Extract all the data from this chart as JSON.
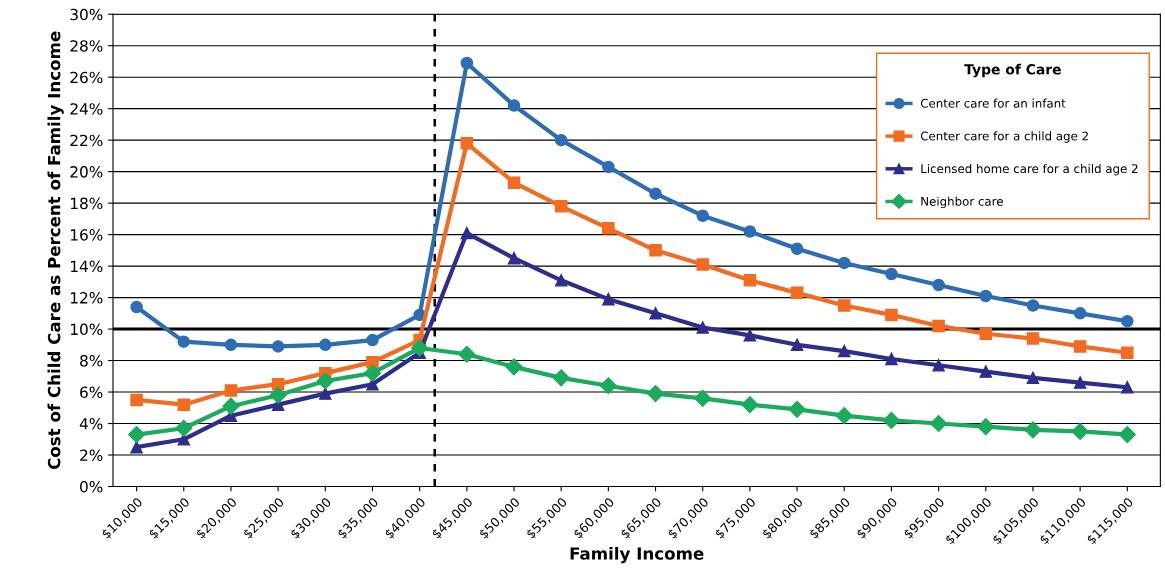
{
  "chart_data": {
    "type": "line",
    "xlabel": "Family Income",
    "ylabel": "Cost of Child Care as Percent of Family Income",
    "legend_title": "Type of Care",
    "legend": "top right",
    "grid": "y",
    "line_style": "solid",
    "x": [
      10000,
      15000,
      20000,
      25000,
      30000,
      35000,
      40000,
      45000,
      50000,
      55000,
      60000,
      65000,
      70000,
      75000,
      80000,
      85000,
      90000,
      95000,
      100000,
      105000,
      110000,
      115000
    ],
    "xlim": [
      7500,
      118500
    ],
    "xticks": [
      {
        "value": 10000,
        "label": "$10,000"
      },
      {
        "value": 15000,
        "label": "$15,000"
      },
      {
        "value": 20000,
        "label": "$20,000"
      },
      {
        "value": 25000,
        "label": "$25,000"
      },
      {
        "value": 30000,
        "label": "$30,000"
      },
      {
        "value": 35000,
        "label": "$35,000"
      },
      {
        "value": 40000,
        "label": "$40,000"
      },
      {
        "value": 45000,
        "label": "$45,000"
      },
      {
        "value": 50000,
        "label": "$50,000"
      },
      {
        "value": 55000,
        "label": "$55,000"
      },
      {
        "value": 60000,
        "label": "$60,000"
      },
      {
        "value": 65000,
        "label": "$65,000"
      },
      {
        "value": 70000,
        "label": "$70,000"
      },
      {
        "value": 75000,
        "label": "$75,000"
      },
      {
        "value": 80000,
        "label": "$80,000"
      },
      {
        "value": 85000,
        "label": "$85,000"
      },
      {
        "value": 90000,
        "label": "$90,000"
      },
      {
        "value": 95000,
        "label": "$95,000"
      },
      {
        "value": 100000,
        "label": "$100,000"
      },
      {
        "value": 105000,
        "label": "$105,000"
      },
      {
        "value": 110000,
        "label": "$110,000"
      },
      {
        "value": 115000,
        "label": "$115,000"
      }
    ],
    "ylim": [
      0,
      30
    ],
    "yticks": [
      {
        "value": 0,
        "label": "0%"
      },
      {
        "value": 2,
        "label": "2%"
      },
      {
        "value": 4,
        "label": "4%"
      },
      {
        "value": 6,
        "label": "6%"
      },
      {
        "value": 8,
        "label": "8%"
      },
      {
        "value": 10,
        "label": "10%"
      },
      {
        "value": 12,
        "label": "12%"
      },
      {
        "value": 14,
        "label": "14%"
      },
      {
        "value": 16,
        "label": "16%"
      },
      {
        "value": 18,
        "label": "18%"
      },
      {
        "value": 20,
        "label": "20%"
      },
      {
        "value": 22,
        "label": "22%"
      },
      {
        "value": 24,
        "label": "24%"
      },
      {
        "value": 26,
        "label": "26%"
      },
      {
        "value": 28,
        "label": "28%"
      },
      {
        "value": 30,
        "label": "30%"
      }
    ],
    "ref_lines": [
      {
        "axis": "y",
        "value": 10,
        "color": "#000000",
        "line_style": "solid"
      },
      {
        "axis": "x",
        "value": 41600,
        "color": "#000000",
        "line_style": "dashed"
      }
    ],
    "series": [
      {
        "name": "Center care for an infant",
        "color": "#2e6db4",
        "marker": "circle",
        "values": [
          11.4,
          9.2,
          9.0,
          8.9,
          9.0,
          9.3,
          10.9,
          26.9,
          24.2,
          22.0,
          20.3,
          18.6,
          17.2,
          16.2,
          15.1,
          14.2,
          13.5,
          12.8,
          12.1,
          11.5,
          11.0,
          10.5
        ]
      },
      {
        "name": "Center care for a child age 2",
        "color": "#f26b21",
        "marker": "square",
        "values": [
          5.5,
          5.2,
          6.1,
          6.5,
          7.2,
          7.9,
          9.3,
          21.8,
          19.3,
          17.8,
          16.4,
          15.0,
          14.1,
          13.1,
          12.3,
          11.5,
          10.9,
          10.2,
          9.7,
          9.4,
          8.9,
          8.5
        ]
      },
      {
        "name": "Licensed home care for a child age 2",
        "color": "#2e2d8c",
        "marker": "triangle",
        "values": [
          2.5,
          3.0,
          4.5,
          5.2,
          5.9,
          6.5,
          8.5,
          16.1,
          14.5,
          13.1,
          11.9,
          11.0,
          10.1,
          9.6,
          9.0,
          8.6,
          8.1,
          7.7,
          7.3,
          6.9,
          6.6,
          6.3
        ]
      },
      {
        "name": "Neighbor care",
        "color": "#1aab5c",
        "marker": "diamond",
        "values": [
          3.3,
          3.7,
          5.1,
          5.8,
          6.7,
          7.2,
          8.8,
          8.4,
          7.6,
          6.9,
          6.4,
          5.9,
          5.6,
          5.2,
          4.9,
          4.5,
          4.2,
          4.0,
          3.8,
          3.6,
          3.5,
          3.3
        ]
      }
    ]
  }
}
